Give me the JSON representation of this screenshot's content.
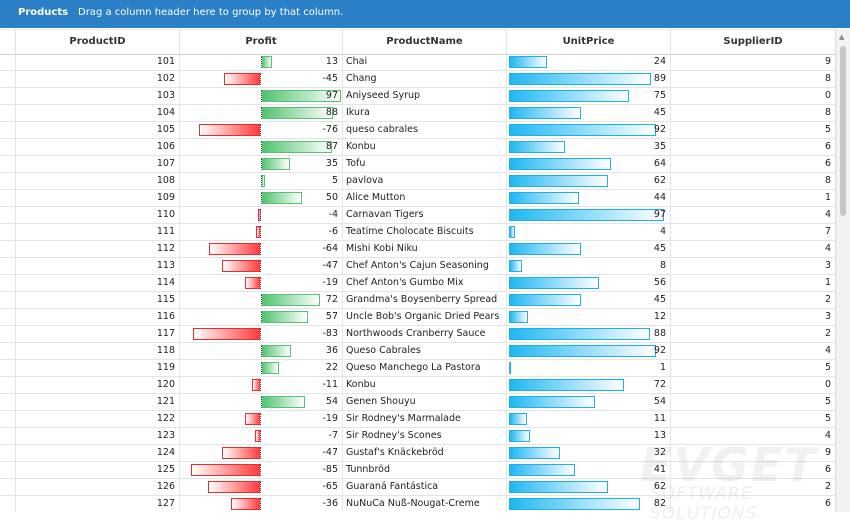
{
  "toolbar": {
    "title": "Products",
    "hint": "Drag a column header here to group by that column."
  },
  "columns": [
    "ProductID",
    "Profit",
    "ProductName",
    "UnitPrice",
    "SupplierID"
  ],
  "rows": [
    {
      "id": "101",
      "profit": 13,
      "name": "Chai",
      "price": 24,
      "supplier": "9"
    },
    {
      "id": "102",
      "profit": -45,
      "name": "Chang",
      "price": 89,
      "supplier": "8"
    },
    {
      "id": "103",
      "profit": 97,
      "name": "Aniyseed Syrup",
      "price": 75,
      "supplier": "0"
    },
    {
      "id": "104",
      "profit": 88,
      "name": "Ikura",
      "price": 45,
      "supplier": "8"
    },
    {
      "id": "105",
      "profit": -76,
      "name": "queso cabrales",
      "price": 92,
      "supplier": "5"
    },
    {
      "id": "106",
      "profit": 87,
      "name": "Konbu",
      "price": 35,
      "supplier": "6"
    },
    {
      "id": "107",
      "profit": 35,
      "name": "Tofu",
      "price": 64,
      "supplier": "6"
    },
    {
      "id": "108",
      "profit": 5,
      "name": "pavlova",
      "price": 62,
      "supplier": "8"
    },
    {
      "id": "109",
      "profit": 50,
      "name": "Alice Mutton",
      "price": 44,
      "supplier": "1"
    },
    {
      "id": "110",
      "profit": -4,
      "name": "Carnavan Tigers",
      "price": 97,
      "supplier": "4"
    },
    {
      "id": "111",
      "profit": -6,
      "name": "Teatime Cholocate Biscuits",
      "price": 4,
      "supplier": "7"
    },
    {
      "id": "112",
      "profit": -64,
      "name": "Mishi Kobi Niku",
      "price": 45,
      "supplier": "4"
    },
    {
      "id": "113",
      "profit": -47,
      "name": "Chef Anton's Cajun Seasoning",
      "price": 8,
      "supplier": "3"
    },
    {
      "id": "114",
      "profit": -19,
      "name": "Chef Anton's Gumbo Mix",
      "price": 56,
      "supplier": "1"
    },
    {
      "id": "115",
      "profit": 72,
      "name": "Grandma's Boysenberry Spread",
      "price": 45,
      "supplier": "2"
    },
    {
      "id": "116",
      "profit": 57,
      "name": "Uncle Bob's Organic Dried Pears",
      "price": 12,
      "supplier": "3"
    },
    {
      "id": "117",
      "profit": -83,
      "name": "Northwoods Cranberry Sauce",
      "price": 88,
      "supplier": "2"
    },
    {
      "id": "118",
      "profit": 36,
      "name": "Queso Cabrales",
      "price": 92,
      "supplier": "4"
    },
    {
      "id": "119",
      "profit": 22,
      "name": "Queso Manchego La Pastora",
      "price": 1,
      "supplier": "5"
    },
    {
      "id": "120",
      "profit": -11,
      "name": "Konbu",
      "price": 72,
      "supplier": "0"
    },
    {
      "id": "121",
      "profit": 54,
      "name": "Genen Shouyu",
      "price": 54,
      "supplier": "5"
    },
    {
      "id": "122",
      "profit": -19,
      "name": "Sir Rodney's Marmalade",
      "price": 11,
      "supplier": "5"
    },
    {
      "id": "123",
      "profit": -7,
      "name": "Sir Rodney's Scones",
      "price": 13,
      "supplier": "4"
    },
    {
      "id": "124",
      "profit": -47,
      "name": "Gustaf's Knäckebröd",
      "price": 32,
      "supplier": "9"
    },
    {
      "id": "125",
      "profit": -85,
      "name": "Tunnbröd",
      "price": 41,
      "supplier": "6"
    },
    {
      "id": "126",
      "profit": -65,
      "name": "Guaraná Fantástica",
      "price": 62,
      "supplier": "2"
    },
    {
      "id": "127",
      "profit": -36,
      "name": "NuNuCa Nuß-Nougat-Creme",
      "price": 82,
      "supplier": "6"
    }
  ],
  "watermark": {
    "line1": "EVGET",
    "line2": "SOFTWARE SOLUTIONS"
  },
  "colors": {
    "toolbar": "#2b7fc6",
    "positive": "#4fc36d",
    "negative": "#ff3a3a",
    "price": "#1fb7f2"
  }
}
